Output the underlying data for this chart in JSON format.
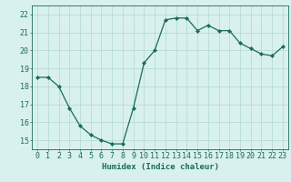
{
  "x": [
    0,
    1,
    2,
    3,
    4,
    5,
    6,
    7,
    8,
    9,
    10,
    11,
    12,
    13,
    14,
    15,
    16,
    17,
    18,
    19,
    20,
    21,
    22,
    23
  ],
  "y": [
    18.5,
    18.5,
    18.0,
    16.8,
    15.8,
    15.3,
    15.0,
    14.8,
    14.8,
    16.8,
    19.3,
    20.0,
    21.7,
    21.8,
    21.8,
    21.1,
    21.4,
    21.1,
    21.1,
    20.4,
    20.1,
    19.8,
    19.7,
    20.2
  ],
  "line_color": "#1a6b5a",
  "marker": "D",
  "marker_size": 2,
  "linewidth": 0.9,
  "xlabel": "Humidex (Indice chaleur)",
  "xlabel_fontsize": 6.5,
  "xlabel_color": "#1a6b5a",
  "xlabel_bold": true,
  "bg_color": "#d8f0ee",
  "grid_color": "#b0d8d4",
  "tick_color": "#1a6b5a",
  "tick_fontsize": 6,
  "xlim": [
    -0.5,
    23.5
  ],
  "ylim": [
    14.5,
    22.5
  ],
  "yticks": [
    15,
    16,
    17,
    18,
    19,
    20,
    21,
    22
  ],
  "xticks": [
    0,
    1,
    2,
    3,
    4,
    5,
    6,
    7,
    8,
    9,
    10,
    11,
    12,
    13,
    14,
    15,
    16,
    17,
    18,
    19,
    20,
    21,
    22,
    23
  ]
}
